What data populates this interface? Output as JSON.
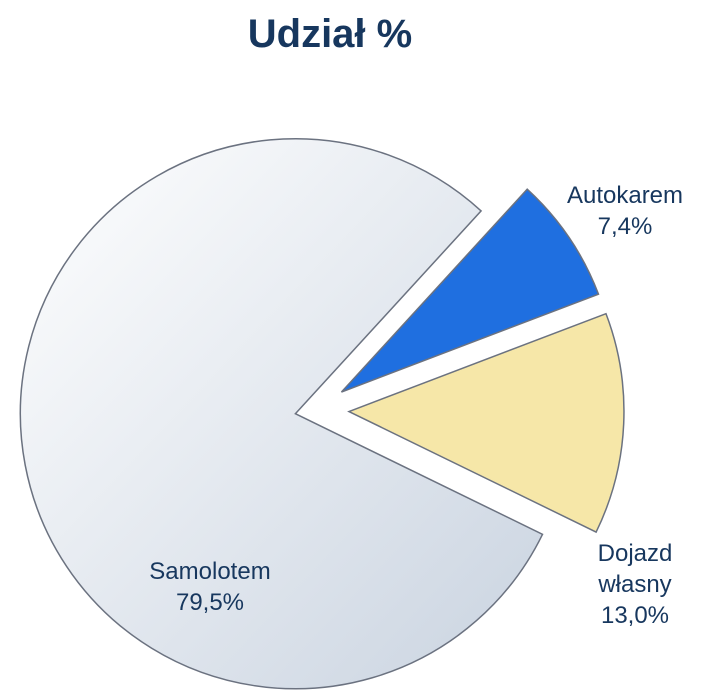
{
  "chart_data": {
    "type": "pie",
    "title": "Udział %",
    "categories": [
      "Samolotem",
      "Autokarem",
      "Dojazd własny"
    ],
    "values": [
      79.5,
      7.4,
      13.0
    ],
    "value_labels": [
      "79,5%",
      "7,4%",
      "13,0%"
    ],
    "colors": [
      "#e4eaf2",
      "#1f6fe0",
      "#f6e7a8"
    ]
  }
}
